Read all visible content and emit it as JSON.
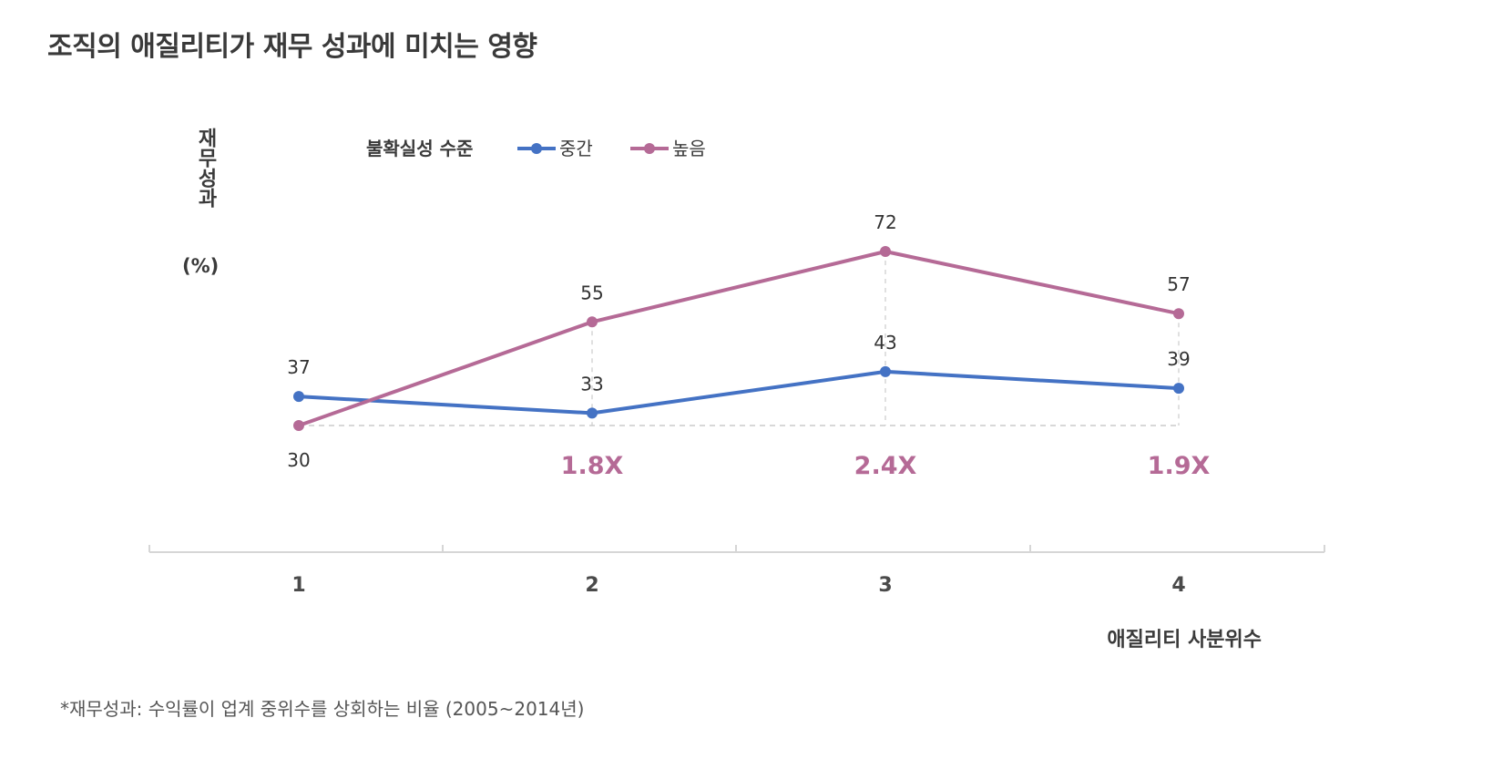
{
  "title": "조직의 애질리티가 재무 성과에 미치는 영향",
  "footnote": "*재무성과: 수익률이 업계 중위수를 상회하는 비율 (2005~2014년)",
  "colors": {
    "mid": "#4472c4",
    "high": "#b56a96",
    "guide": "#cccccc",
    "axis": "#d6d6d6"
  },
  "chart_data": {
    "type": "line",
    "title": "조직의 애질리티가 재무 성과에 미치는 영향",
    "xlabel": "애질리티 사분위수",
    "ylabel": "재무성과",
    "ylabel_unit": "(%)",
    "categories": [
      "1",
      "2",
      "3",
      "4"
    ],
    "legend_title": "불확실성 수준",
    "legend_position": "top-left",
    "grid": false,
    "ylim": [
      30,
      72
    ],
    "series": [
      {
        "name": "중간",
        "values": [
          37,
          33,
          43,
          39
        ],
        "labels": [
          "37",
          "33",
          "43",
          "39"
        ]
      },
      {
        "name": "높음",
        "values": [
          30,
          55,
          72,
          57
        ],
        "labels": [
          "30",
          "55",
          "72",
          "57"
        ]
      }
    ],
    "multipliers": [
      "",
      "1.8X",
      "2.4X",
      "1.9X"
    ]
  }
}
